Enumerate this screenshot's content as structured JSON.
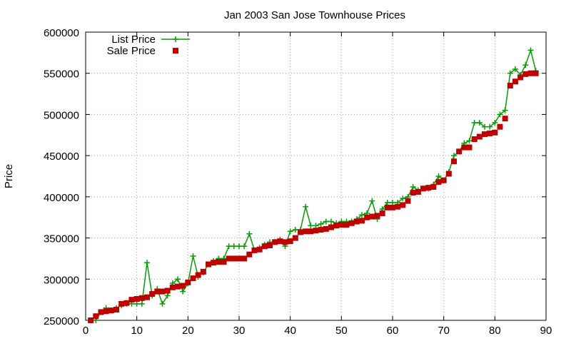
{
  "chart_data": {
    "type": "scatter",
    "title": "Jan 2003 San Jose Townhouse Prices",
    "xlabel": "",
    "ylabel": "Price",
    "xlim": [
      0,
      90
    ],
    "ylim": [
      250000,
      600000
    ],
    "xticks": [
      0,
      10,
      20,
      30,
      40,
      50,
      60,
      70,
      80,
      90
    ],
    "yticks": [
      250000,
      300000,
      350000,
      400000,
      450000,
      500000,
      550000,
      600000
    ],
    "grid": true,
    "legend_position": "top-left",
    "series": [
      {
        "name": "List Price",
        "style": "linespoints",
        "marker": "plus",
        "color": "#00a000",
        "x": [
          1,
          2,
          3,
          4,
          5,
          6,
          7,
          8,
          9,
          10,
          11,
          12,
          13,
          14,
          15,
          16,
          17,
          18,
          19,
          20,
          21,
          22,
          23,
          24,
          25,
          26,
          27,
          28,
          29,
          30,
          31,
          32,
          33,
          34,
          35,
          36,
          37,
          38,
          39,
          40,
          41,
          42,
          43,
          44,
          45,
          46,
          47,
          48,
          49,
          50,
          51,
          52,
          53,
          54,
          55,
          56,
          57,
          58,
          59,
          60,
          61,
          62,
          63,
          64,
          65,
          66,
          67,
          68,
          69,
          70,
          71,
          72,
          73,
          74,
          75,
          76,
          77,
          78,
          79,
          80,
          81,
          82,
          83,
          84,
          85,
          86,
          87,
          88
        ],
        "y": [
          250000,
          250000,
          260000,
          265000,
          262000,
          265000,
          268000,
          270000,
          270000,
          270000,
          270000,
          320000,
          280000,
          288000,
          270000,
          280000,
          295000,
          300000,
          285000,
          295000,
          328000,
          303000,
          308000,
          318000,
          322000,
          325000,
          325000,
          340000,
          340000,
          340000,
          340000,
          355000,
          335000,
          338000,
          342000,
          345000,
          345000,
          348000,
          340000,
          358000,
          360000,
          360000,
          388000,
          365000,
          365000,
          367000,
          370000,
          370000,
          368000,
          370000,
          370000,
          370000,
          373000,
          378000,
          380000,
          395000,
          373000,
          385000,
          393000,
          393000,
          393000,
          398000,
          400000,
          412000,
          408000,
          410000,
          410000,
          415000,
          425000,
          420000,
          430000,
          450000,
          455000,
          465000,
          468000,
          490000,
          490000,
          485000,
          485000,
          490000,
          500000,
          505000,
          550000,
          555000,
          548000,
          560000,
          578000,
          553000
        ]
      },
      {
        "name": "Sale Price",
        "style": "points",
        "marker": "square",
        "color": "#c00000",
        "x": [
          1,
          2,
          3,
          4,
          5,
          6,
          7,
          8,
          9,
          10,
          11,
          12,
          13,
          14,
          15,
          16,
          17,
          18,
          19,
          20,
          21,
          22,
          23,
          24,
          25,
          26,
          27,
          28,
          29,
          30,
          31,
          32,
          33,
          34,
          35,
          36,
          37,
          38,
          39,
          40,
          41,
          42,
          43,
          44,
          45,
          46,
          47,
          48,
          49,
          50,
          51,
          52,
          53,
          54,
          55,
          56,
          57,
          58,
          59,
          60,
          61,
          62,
          63,
          64,
          65,
          66,
          67,
          68,
          69,
          70,
          71,
          72,
          73,
          74,
          75,
          76,
          77,
          78,
          79,
          80,
          81,
          82,
          83,
          84,
          85,
          86,
          87,
          88
        ],
        "y": [
          250000,
          255000,
          260000,
          261000,
          262000,
          263000,
          270000,
          271000,
          275000,
          276000,
          277000,
          278000,
          282000,
          285000,
          285000,
          286000,
          290000,
          291000,
          292000,
          296000,
          301000,
          305000,
          309000,
          318000,
          320000,
          321000,
          321000,
          325000,
          325000,
          325000,
          325000,
          330000,
          335000,
          336000,
          340000,
          341000,
          345000,
          346000,
          345000,
          346000,
          350000,
          357000,
          358000,
          358000,
          359000,
          360000,
          361000,
          363000,
          365000,
          366000,
          366000,
          368000,
          370000,
          371000,
          375000,
          376000,
          377000,
          380000,
          387000,
          387000,
          388000,
          390000,
          395000,
          405000,
          406000,
          410000,
          411000,
          412000,
          418000,
          420000,
          428000,
          443000,
          455000,
          460000,
          460000,
          470000,
          473000,
          476000,
          477000,
          478000,
          485000,
          495000,
          535000,
          540000,
          545000,
          549000,
          550000,
          550000
        ]
      }
    ]
  }
}
